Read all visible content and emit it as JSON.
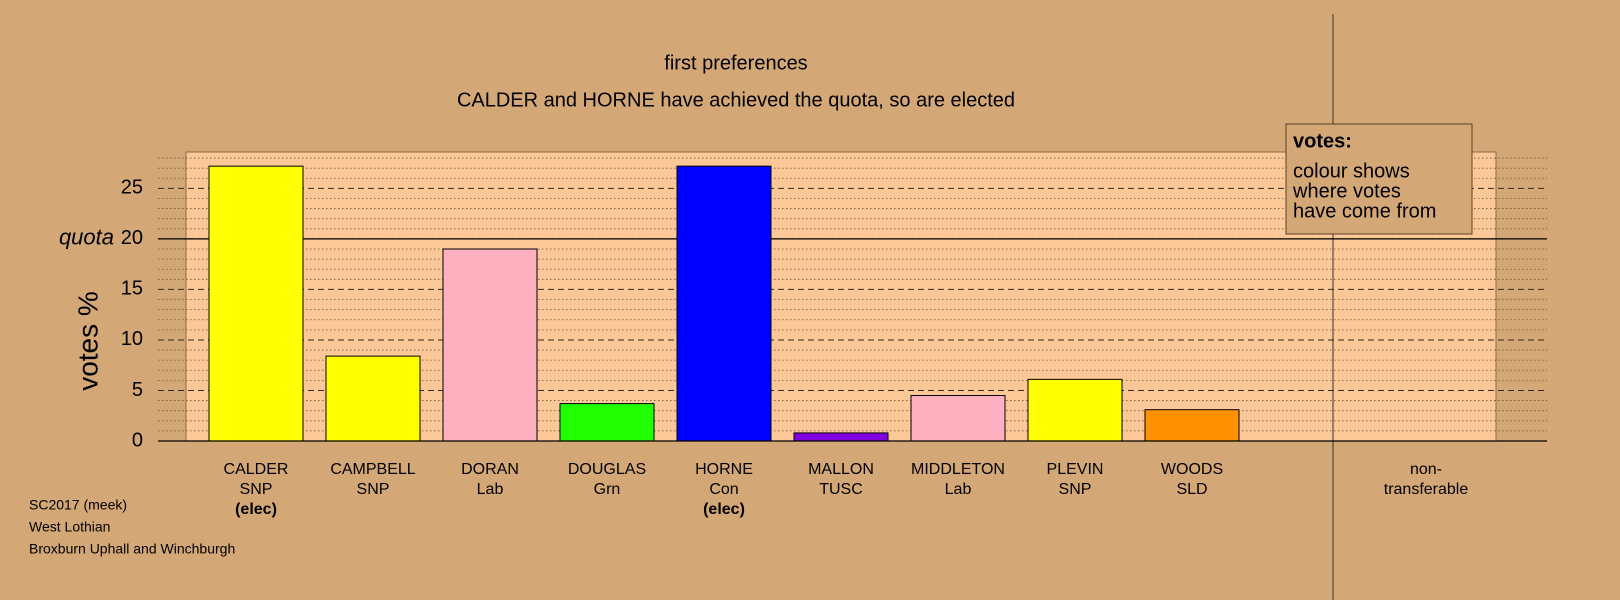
{
  "chart_data": {
    "type": "bar",
    "title": "first preferences",
    "subtitle": "CALDER and HORNE have achieved the quota, so are elected",
    "ylabel": "votes %",
    "categories": [
      "CALDER",
      "CAMPBELL",
      "DORAN",
      "DOUGLAS",
      "HORNE",
      "MALLON",
      "MIDDLETON",
      "PLEVIN",
      "WOODS"
    ],
    "parties": [
      "SNP",
      "SNP",
      "Lab",
      "Grn",
      "Con",
      "TUSC",
      "Lab",
      "SNP",
      "SLD"
    ],
    "status": [
      "(elec)",
      null,
      null,
      null,
      "(elec)",
      null,
      null,
      null,
      null
    ],
    "values": [
      27.2,
      8.4,
      19.0,
      3.7,
      27.2,
      0.8,
      4.5,
      6.1,
      3.1
    ],
    "colors": [
      "#ffff00",
      "#ffff00",
      "#ffb0c0",
      "#22ff00",
      "#0000ff",
      "#8000e0",
      "#ffb0c0",
      "#ffff00",
      "#ff9000"
    ],
    "ylim": [
      0,
      28.6
    ],
    "yticks": [
      0,
      5,
      10,
      15,
      20,
      25
    ],
    "minor_yticks": [
      1,
      2,
      3,
      4,
      6,
      7,
      8,
      9,
      11,
      12,
      13,
      14,
      16,
      17,
      18,
      19,
      21,
      22,
      23,
      24,
      26,
      27,
      28
    ],
    "quota": 20,
    "quota_label": "quota",
    "non_transferable_label": [
      "non-",
      "transferable"
    ],
    "legend": {
      "title": "votes:",
      "lines": [
        "colour shows",
        "where votes",
        "have come from"
      ]
    },
    "footer": [
      "SC2017 (meek)",
      "West Lothian",
      "Broxburn Uphall and Winchburgh"
    ]
  }
}
